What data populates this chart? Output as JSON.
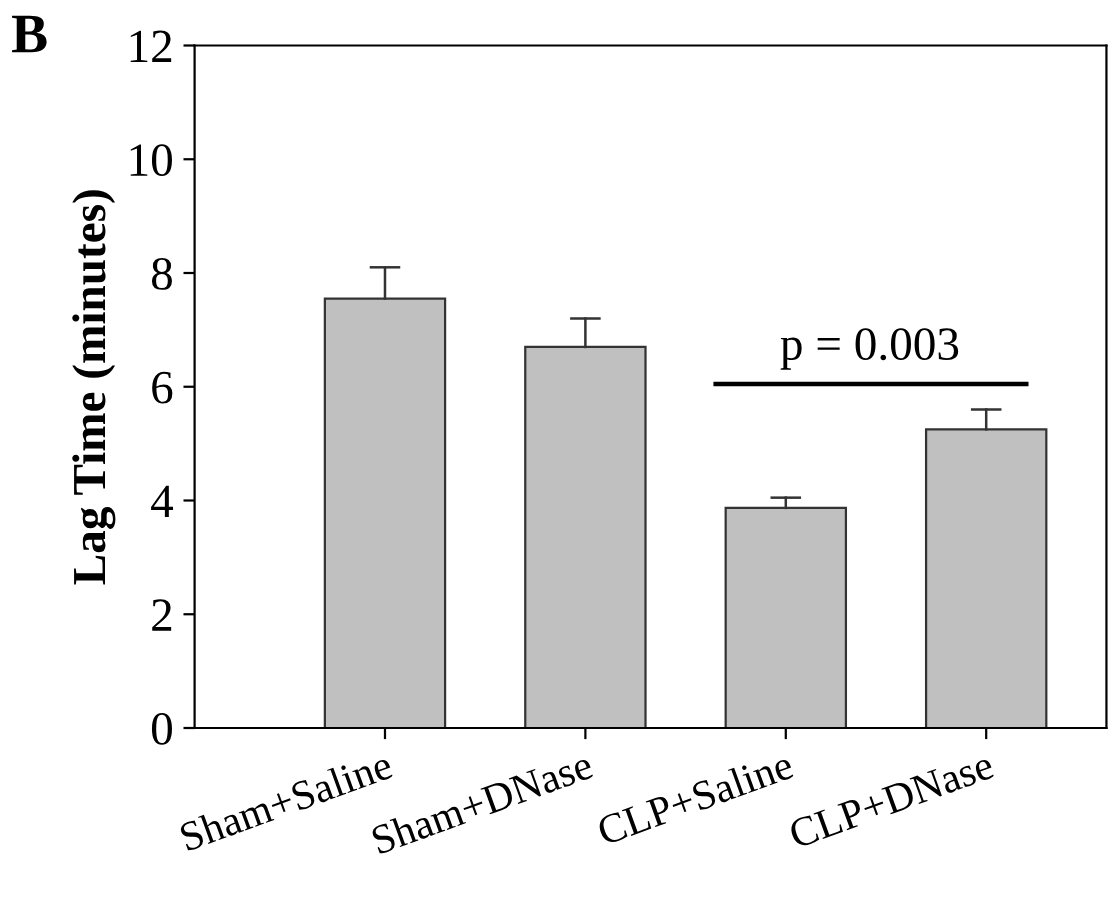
{
  "chart_data": {
    "type": "bar",
    "title": "B",
    "ylabel": "Lag Time (minutes)",
    "categories": [
      "Sham+Saline",
      "Sham+DNase",
      "CLP+Saline",
      "CLP+DNase"
    ],
    "values": [
      7.55,
      6.7,
      3.87,
      5.25
    ],
    "errors": [
      [
        7.55,
        8.1
      ],
      [
        6.7,
        7.2
      ],
      [
        3.87,
        4.05
      ],
      [
        5.25,
        5.6
      ]
    ],
    "color": "#c0c0c0",
    "ylim": [
      0,
      12
    ],
    "yticks": [
      0,
      2,
      4,
      6,
      8,
      10,
      12
    ],
    "annotations": [
      "p = 0.003"
    ],
    "grid": false,
    "legend": false
  }
}
